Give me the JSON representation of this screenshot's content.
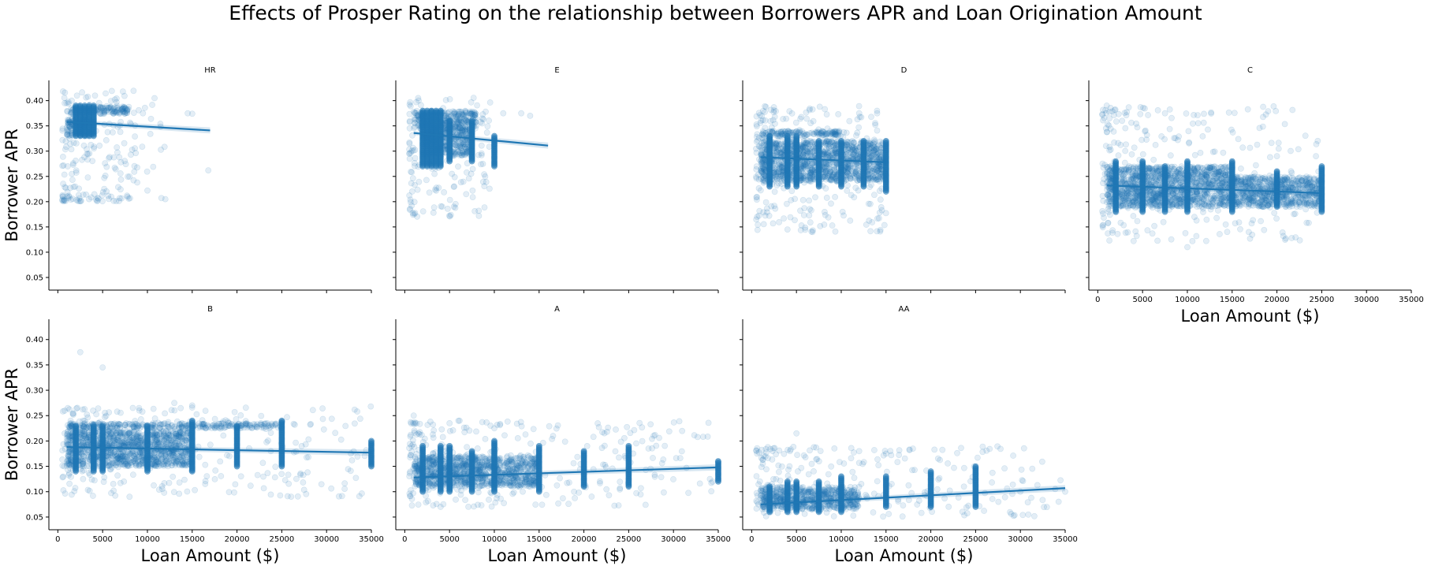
{
  "title": "Effects of Prosper Rating on the relationship between Borrowers APR and Loan Origination Amount",
  "chart_data": {
    "type": "scatter",
    "title": "Effects of Prosper Rating on the relationship between Borrowers APR and Loan Origination Amount",
    "xlabel": "Loan Amount ($)",
    "ylabel": "Borrower APR",
    "xlim": [
      -1000,
      35000
    ],
    "ylim": [
      0.025,
      0.44
    ],
    "x_ticks": [
      0,
      5000,
      10000,
      15000,
      20000,
      25000,
      30000,
      35000
    ],
    "y_ticks": [
      0.05,
      0.1,
      0.15,
      0.2,
      0.25,
      0.3,
      0.35,
      0.4
    ],
    "x_tick_labels": [
      "0",
      "5000",
      "10000",
      "15000",
      "20000",
      "25000",
      "30000",
      "35000"
    ],
    "y_tick_labels": [
      "0.05",
      "0.10",
      "0.15",
      "0.20",
      "0.25",
      "0.30",
      "0.35",
      "0.40"
    ],
    "grid": false,
    "legend": "none",
    "point_color": "#1f77b4",
    "point_alpha": 0.12,
    "facets": [
      {
        "name": "HR",
        "regression": {
          "x": [
            1000,
            17000
          ],
          "y": [
            0.358,
            0.341
          ]
        },
        "stripes": [
          {
            "x": 2000,
            "y": [
              0.33,
              0.39
            ]
          },
          {
            "x": 2500,
            "y": [
              0.33,
              0.39
            ]
          },
          {
            "x": 3000,
            "y": [
              0.33,
              0.39
            ]
          },
          {
            "x": 3500,
            "y": [
              0.33,
              0.39
            ]
          },
          {
            "x": 4000,
            "y": [
              0.33,
              0.39
            ]
          }
        ],
        "bands": [
          {
            "x": [
              1000,
              8000
            ],
            "y": [
              0.374,
              0.388
            ]
          },
          {
            "x": [
              1000,
              4000
            ],
            "y": [
              0.33,
              0.365
            ]
          }
        ],
        "cloud": [
          {
            "x": [
              500,
              12000
            ],
            "y": [
              0.2,
              0.42
            ],
            "n": 160
          },
          {
            "x": [
              500,
              8000
            ],
            "y": [
              0.2,
              0.215
            ],
            "n": 40
          }
        ],
        "outliers": [
          [
            16800,
            0.262
          ],
          [
            12000,
            0.205
          ],
          [
            10000,
            0.222
          ],
          [
            9500,
            0.375
          ],
          [
            14500,
            0.375
          ],
          [
            15000,
            0.374
          ]
        ]
      },
      {
        "name": "E",
        "regression": {
          "x": [
            1000,
            16000
          ],
          "y": [
            0.336,
            0.311
          ]
        },
        "stripes": [
          {
            "x": 2000,
            "y": [
              0.27,
              0.38
            ]
          },
          {
            "x": 2500,
            "y": [
              0.27,
              0.38
            ]
          },
          {
            "x": 3000,
            "y": [
              0.27,
              0.38
            ]
          },
          {
            "x": 3500,
            "y": [
              0.27,
              0.38
            ]
          },
          {
            "x": 4000,
            "y": [
              0.27,
              0.38
            ]
          },
          {
            "x": 5000,
            "y": [
              0.28,
              0.36
            ]
          },
          {
            "x": 7500,
            "y": [
              0.28,
              0.36
            ]
          },
          {
            "x": 10000,
            "y": [
              0.27,
              0.33
            ]
          }
        ],
        "bands": [
          {
            "x": [
              1000,
              8000
            ],
            "y": [
              0.345,
              0.38
            ]
          },
          {
            "x": [
              2000,
              7500
            ],
            "y": [
              0.29,
              0.345
            ]
          }
        ],
        "cloud": [
          {
            "x": [
              500,
              10000
            ],
            "y": [
              0.17,
              0.41
            ],
            "n": 160
          }
        ],
        "outliers": [
          [
            13000,
            0.375
          ],
          [
            14000,
            0.37
          ],
          [
            11000,
            0.375
          ],
          [
            1500,
            0.405
          ]
        ]
      },
      {
        "name": "D",
        "regression": {
          "x": [
            1000,
            15000
          ],
          "y": [
            0.288,
            0.278
          ]
        },
        "stripes": [
          {
            "x": 2000,
            "y": [
              0.23,
              0.33
            ]
          },
          {
            "x": 4000,
            "y": [
              0.23,
              0.33
            ]
          },
          {
            "x": 5000,
            "y": [
              0.23,
              0.33
            ]
          },
          {
            "x": 7500,
            "y": [
              0.23,
              0.32
            ]
          },
          {
            "x": 10000,
            "y": [
              0.23,
              0.32
            ]
          },
          {
            "x": 12500,
            "y": [
              0.23,
              0.32
            ]
          },
          {
            "x": 15000,
            "y": [
              0.22,
              0.32
            ]
          }
        ],
        "bands": [
          {
            "x": [
              1000,
              15000
            ],
            "y": [
              0.24,
              0.32
            ]
          },
          {
            "x": [
              1000,
              10000
            ],
            "y": [
              0.33,
              0.34
            ]
          }
        ],
        "cloud": [
          {
            "x": [
              500,
              15000
            ],
            "y": [
              0.14,
              0.39
            ],
            "n": 260
          }
        ],
        "outliers": [
          [
            6800,
            0.14
          ],
          [
            4000,
            0.145
          ],
          [
            12000,
            0.375
          ],
          [
            14000,
            0.38
          ]
        ]
      },
      {
        "name": "C",
        "regression": {
          "x": [
            1000,
            25000
          ],
          "y": [
            0.232,
            0.217
          ]
        },
        "stripes": [
          {
            "x": 2000,
            "y": [
              0.18,
              0.28
            ]
          },
          {
            "x": 5000,
            "y": [
              0.18,
              0.28
            ]
          },
          {
            "x": 7500,
            "y": [
              0.18,
              0.27
            ]
          },
          {
            "x": 10000,
            "y": [
              0.18,
              0.28
            ]
          },
          {
            "x": 15000,
            "y": [
              0.18,
              0.28
            ]
          },
          {
            "x": 20000,
            "y": [
              0.19,
              0.26
            ]
          },
          {
            "x": 25000,
            "y": [
              0.18,
              0.27
            ]
          }
        ],
        "bands": [
          {
            "x": [
              1000,
              15000
            ],
            "y": [
              0.19,
              0.27
            ]
          },
          {
            "x": [
              15000,
              25000
            ],
            "y": [
              0.19,
              0.25
            ]
          }
        ],
        "cloud": [
          {
            "x": [
              500,
              25000
            ],
            "y": [
              0.12,
              0.39
            ],
            "n": 280
          }
        ],
        "outliers": [
          [
            10000,
            0.11
          ],
          [
            4000,
            0.122
          ],
          [
            1000,
            0.39
          ],
          [
            20000,
            0.29
          ],
          [
            7500,
            0.375
          ]
        ]
      },
      {
        "name": "B",
        "regression": {
          "x": [
            1000,
            35000
          ],
          "y": [
            0.188,
            0.177
          ]
        },
        "stripes": [
          {
            "x": 2000,
            "y": [
              0.14,
              0.23
            ]
          },
          {
            "x": 4000,
            "y": [
              0.14,
              0.23
            ]
          },
          {
            "x": 5000,
            "y": [
              0.14,
              0.23
            ]
          },
          {
            "x": 10000,
            "y": [
              0.14,
              0.23
            ]
          },
          {
            "x": 15000,
            "y": [
              0.14,
              0.24
            ]
          },
          {
            "x": 20000,
            "y": [
              0.15,
              0.23
            ]
          },
          {
            "x": 25000,
            "y": [
              0.15,
              0.24
            ]
          },
          {
            "x": 35000,
            "y": [
              0.15,
              0.2
            ]
          }
        ],
        "bands": [
          {
            "x": [
              1000,
              15000
            ],
            "y": [
              0.15,
              0.22
            ]
          },
          {
            "x": [
              1000,
              25000
            ],
            "y": [
              0.225,
              0.235
            ]
          }
        ],
        "cloud": [
          {
            "x": [
              500,
              35000
            ],
            "y": [
              0.09,
              0.27
            ],
            "n": 300
          }
        ],
        "outliers": [
          [
            2500,
            0.375
          ],
          [
            5000,
            0.345
          ],
          [
            3000,
            0.24
          ],
          [
            8000,
            0.09
          ],
          [
            15000,
            0.27
          ],
          [
            13000,
            0.275
          ]
        ]
      },
      {
        "name": "A",
        "regression": {
          "x": [
            1000,
            35000
          ],
          "y": [
            0.128,
            0.148
          ]
        },
        "stripes": [
          {
            "x": 2000,
            "y": [
              0.1,
              0.19
            ]
          },
          {
            "x": 4000,
            "y": [
              0.1,
              0.19
            ]
          },
          {
            "x": 5000,
            "y": [
              0.1,
              0.19
            ]
          },
          {
            "x": 7500,
            "y": [
              0.1,
              0.18
            ]
          },
          {
            "x": 10000,
            "y": [
              0.1,
              0.2
            ]
          },
          {
            "x": 15000,
            "y": [
              0.1,
              0.19
            ]
          },
          {
            "x": 20000,
            "y": [
              0.11,
              0.18
            ]
          },
          {
            "x": 25000,
            "y": [
              0.11,
              0.19
            ]
          },
          {
            "x": 35000,
            "y": [
              0.12,
              0.16
            ]
          }
        ],
        "bands": [
          {
            "x": [
              1000,
              15000
            ],
            "y": [
              0.11,
              0.17
            ]
          }
        ],
        "cloud": [
          {
            "x": [
              500,
              35000
            ],
            "y": [
              0.07,
              0.24
            ],
            "n": 300
          }
        ],
        "outliers": [
          [
            1000,
            0.25
          ],
          [
            5000,
            0.235
          ],
          [
            4000,
            0.07
          ],
          [
            10000,
            0.225
          ]
        ]
      },
      {
        "name": "AA",
        "regression": {
          "x": [
            1000,
            35000
          ],
          "y": [
            0.075,
            0.107
          ]
        },
        "stripes": [
          {
            "x": 2000,
            "y": [
              0.06,
              0.11
            ]
          },
          {
            "x": 4000,
            "y": [
              0.06,
              0.12
            ]
          },
          {
            "x": 5000,
            "y": [
              0.06,
              0.12
            ]
          },
          {
            "x": 7500,
            "y": [
              0.06,
              0.12
            ]
          },
          {
            "x": 10000,
            "y": [
              0.06,
              0.13
            ]
          },
          {
            "x": 15000,
            "y": [
              0.07,
              0.13
            ]
          },
          {
            "x": 20000,
            "y": [
              0.07,
              0.14
            ]
          },
          {
            "x": 25000,
            "y": [
              0.07,
              0.15
            ]
          }
        ],
        "bands": [
          {
            "x": [
              1000,
              12000
            ],
            "y": [
              0.065,
              0.11
            ]
          }
        ],
        "cloud": [
          {
            "x": [
              500,
              35000
            ],
            "y": [
              0.05,
              0.19
            ],
            "n": 240
          }
        ],
        "outliers": [
          [
            5000,
            0.215
          ],
          [
            18000,
            0.185
          ],
          [
            12000,
            0.18
          ],
          [
            15000,
            0.175
          ],
          [
            35000,
            0.1
          ],
          [
            30000,
            0.1
          ]
        ]
      }
    ]
  }
}
